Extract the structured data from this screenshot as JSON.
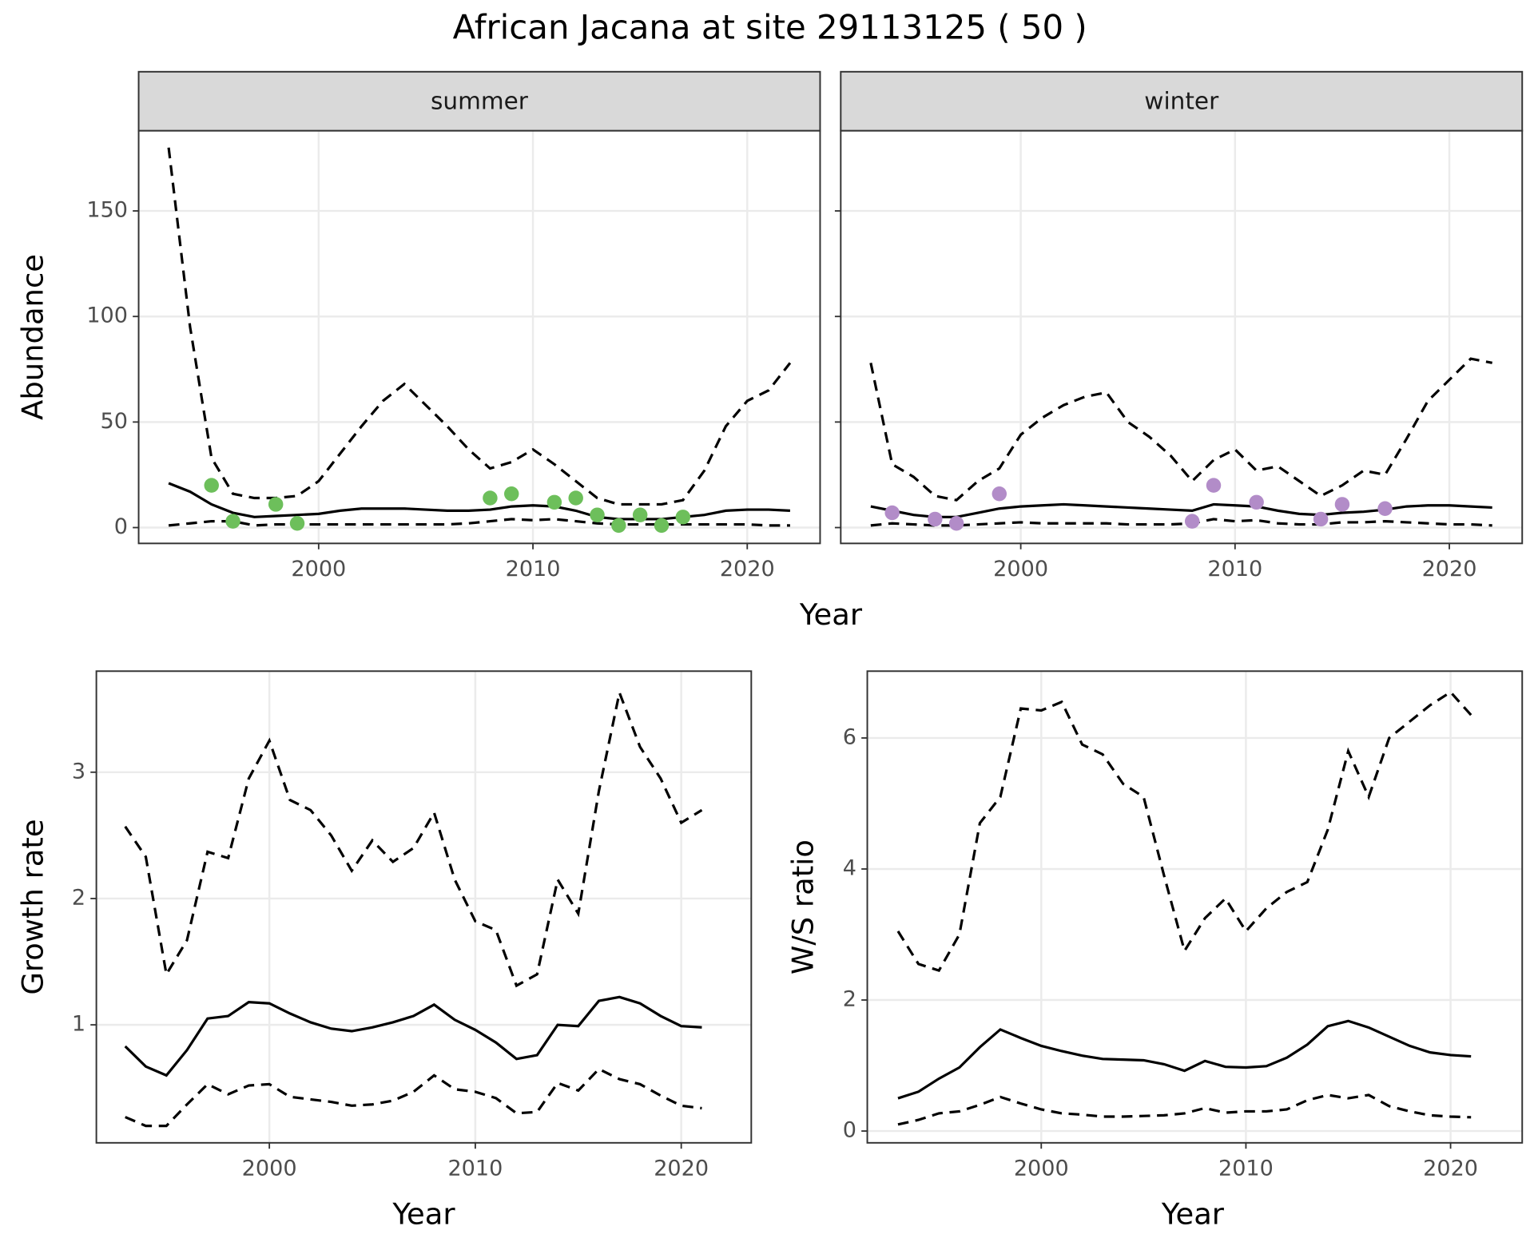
{
  "title": "African Jacana at site 29113125 ( 50 )",
  "chart_data": [
    {
      "type": "line",
      "facet": "summer",
      "xlabel": "Year",
      "ylabel": "Abundance",
      "grid": true,
      "xlim": [
        1991.6,
        2023.4
      ],
      "ylim": [
        -7.5,
        188
      ],
      "xticks": [
        2000,
        2010,
        2020
      ],
      "yticks": [
        0,
        50,
        100,
        150
      ],
      "x": [
        1993,
        1994,
        1995,
        1996,
        1997,
        1998,
        1999,
        2000,
        2001,
        2002,
        2003,
        2004,
        2005,
        2006,
        2007,
        2008,
        2009,
        2010,
        2011,
        2012,
        2013,
        2014,
        2015,
        2016,
        2017,
        2018,
        2019,
        2020,
        2021,
        2022
      ],
      "series": [
        {
          "color": "#000000",
          "dash": "dashed",
          "values": [
            180,
            95,
            33,
            16,
            14,
            14,
            15,
            22,
            35,
            48,
            60,
            68,
            58,
            48,
            37,
            28,
            31,
            37,
            30,
            22,
            14,
            11,
            11,
            11,
            13,
            27,
            48,
            60,
            65,
            78
          ]
        },
        {
          "color": "#000000",
          "dash": "solid",
          "values": [
            21,
            17,
            11,
            7,
            5,
            5.5,
            6,
            6.5,
            8,
            9,
            9,
            9,
            8.5,
            8,
            8,
            8.5,
            10,
            10.5,
            10,
            8,
            5,
            4,
            4,
            4,
            5,
            6,
            8,
            8.5,
            8.5,
            8
          ]
        },
        {
          "color": "#000000",
          "dash": "dashed",
          "values": [
            1,
            2,
            3,
            3,
            1,
            1.5,
            1.5,
            1.5,
            1.5,
            1.5,
            1.5,
            1.5,
            1.5,
            1.5,
            2,
            3,
            4,
            3.5,
            4,
            3,
            2,
            1.5,
            1.5,
            1.5,
            1.5,
            1.5,
            1.5,
            1.5,
            1,
            1
          ]
        }
      ],
      "points": {
        "color": "#6dbf5b",
        "x": [
          1995,
          1996,
          1998,
          1999,
          2008,
          2009,
          2011,
          2012,
          2013,
          2014,
          2015,
          2016,
          2017
        ],
        "values": [
          20,
          3,
          11,
          2,
          14,
          16,
          12,
          14,
          6,
          1,
          6,
          1,
          5
        ]
      }
    },
    {
      "type": "line",
      "facet": "winter",
      "grid": true,
      "show_ytick_labels": false,
      "xlim": [
        1991.6,
        2023.4
      ],
      "ylim": [
        -7.5,
        188
      ],
      "xticks": [
        2000,
        2010,
        2020
      ],
      "yticks": [
        0,
        50,
        100,
        150
      ],
      "x": [
        1993,
        1994,
        1995,
        1996,
        1997,
        1998,
        1999,
        2000,
        2001,
        2002,
        2003,
        2004,
        2005,
        2006,
        2007,
        2008,
        2009,
        2010,
        2011,
        2012,
        2013,
        2014,
        2015,
        2016,
        2017,
        2018,
        2019,
        2020,
        2021,
        2022
      ],
      "series": [
        {
          "color": "#000000",
          "dash": "dashed",
          "values": [
            78,
            30,
            24,
            15,
            13,
            22,
            28,
            44,
            52,
            58,
            62,
            64,
            50,
            43,
            34,
            22,
            32,
            37,
            27,
            29,
            22,
            15,
            20,
            27,
            25,
            42,
            60,
            70,
            80,
            78
          ]
        },
        {
          "color": "#000000",
          "dash": "solid",
          "values": [
            10,
            8,
            6,
            5,
            5,
            7,
            9,
            10,
            10.5,
            11,
            10.5,
            10,
            9.5,
            9,
            8.5,
            8,
            11,
            10.5,
            10,
            8,
            6.5,
            6,
            7,
            7.5,
            8.5,
            10,
            10.5,
            10.5,
            10,
            9.5
          ]
        },
        {
          "color": "#000000",
          "dash": "dashed",
          "values": [
            1,
            2,
            1.5,
            1,
            1,
            1.5,
            2,
            2.5,
            2,
            2,
            2,
            2,
            1.5,
            1.5,
            1.5,
            2,
            4,
            3,
            3.5,
            2,
            1.5,
            1.5,
            2.5,
            2.5,
            3,
            2.5,
            2,
            1.5,
            1.5,
            1
          ]
        }
      ],
      "points": {
        "color": "#b28cc8",
        "x": [
          1994,
          1996,
          1997,
          1999,
          2008,
          2009,
          2011,
          2014,
          2015,
          2017
        ],
        "values": [
          7,
          4,
          2,
          16,
          3,
          20,
          12,
          4,
          11,
          9
        ]
      }
    },
    {
      "type": "line",
      "xlabel": "Year",
      "ylabel": "Growth rate",
      "grid": true,
      "xlim": [
        1991.6,
        2023.4
      ],
      "ylim": [
        0.066,
        3.8
      ],
      "xticks": [
        2000,
        2010,
        2020
      ],
      "yticks": [
        1,
        2,
        3
      ],
      "x": [
        1993,
        1994,
        1995,
        1996,
        1997,
        1998,
        1999,
        2000,
        2001,
        2002,
        2003,
        2004,
        2005,
        2006,
        2007,
        2008,
        2009,
        2010,
        2011,
        2012,
        2013,
        2014,
        2015,
        2016,
        2017,
        2018,
        2019,
        2020,
        2021
      ],
      "series": [
        {
          "color": "#000000",
          "dash": "dashed",
          "values": [
            2.57,
            2.33,
            1.4,
            1.67,
            2.37,
            2.32,
            2.95,
            3.25,
            2.78,
            2.7,
            2.5,
            2.22,
            2.46,
            2.29,
            2.4,
            2.68,
            2.15,
            1.82,
            1.75,
            1.31,
            1.4,
            2.15,
            1.88,
            2.85,
            3.63,
            3.2,
            2.95,
            2.6,
            2.7
          ]
        },
        {
          "color": "#000000",
          "dash": "solid",
          "values": [
            0.83,
            0.67,
            0.6,
            0.8,
            1.05,
            1.07,
            1.18,
            1.17,
            1.09,
            1.02,
            0.97,
            0.95,
            0.98,
            1.02,
            1.07,
            1.16,
            1.04,
            0.96,
            0.86,
            0.73,
            0.76,
            1.0,
            0.99,
            1.19,
            1.22,
            1.17,
            1.07,
            0.99,
            0.98
          ]
        },
        {
          "color": "#000000",
          "dash": "dashed",
          "values": [
            0.27,
            0.2,
            0.2,
            0.37,
            0.53,
            0.45,
            0.52,
            0.53,
            0.43,
            0.41,
            0.39,
            0.36,
            0.37,
            0.4,
            0.47,
            0.6,
            0.49,
            0.47,
            0.42,
            0.3,
            0.31,
            0.54,
            0.48,
            0.65,
            0.57,
            0.53,
            0.44,
            0.36,
            0.34
          ]
        }
      ]
    },
    {
      "type": "line",
      "xlabel": "Year",
      "ylabel": "W/S ratio",
      "grid": true,
      "xlim": [
        1991.5,
        2023.5
      ],
      "ylim": [
        -0.18,
        7.02
      ],
      "xticks": [
        2000,
        2010,
        2020
      ],
      "yticks": [
        0,
        2,
        4,
        6
      ],
      "x": [
        1993,
        1994,
        1995,
        1996,
        1997,
        1998,
        1999,
        2000,
        2001,
        2002,
        2003,
        2004,
        2005,
        2006,
        2007,
        2008,
        2009,
        2010,
        2011,
        2012,
        2013,
        2014,
        2015,
        2016,
        2017,
        2018,
        2019,
        2020,
        2021
      ],
      "series": [
        {
          "color": "#000000",
          "dash": "dashed",
          "values": [
            3.05,
            2.55,
            2.45,
            3.0,
            4.7,
            5.1,
            6.45,
            6.42,
            6.55,
            5.9,
            5.75,
            5.3,
            5.1,
            3.9,
            2.75,
            3.25,
            3.55,
            3.05,
            3.4,
            3.65,
            3.8,
            4.6,
            5.8,
            5.1,
            6.0,
            6.25,
            6.5,
            6.7,
            6.35
          ]
        },
        {
          "color": "#000000",
          "dash": "solid",
          "values": [
            0.5,
            0.6,
            0.8,
            0.97,
            1.28,
            1.55,
            1.42,
            1.3,
            1.22,
            1.15,
            1.1,
            1.09,
            1.08,
            1.02,
            0.92,
            1.07,
            0.98,
            0.97,
            0.99,
            1.12,
            1.32,
            1.6,
            1.68,
            1.58,
            1.44,
            1.3,
            1.2,
            1.16,
            1.14
          ]
        },
        {
          "color": "#000000",
          "dash": "dashed",
          "values": [
            0.1,
            0.17,
            0.27,
            0.3,
            0.4,
            0.52,
            0.42,
            0.33,
            0.27,
            0.25,
            0.22,
            0.22,
            0.23,
            0.24,
            0.27,
            0.35,
            0.28,
            0.3,
            0.3,
            0.33,
            0.47,
            0.55,
            0.5,
            0.55,
            0.38,
            0.3,
            0.24,
            0.22,
            0.21
          ]
        }
      ]
    }
  ]
}
